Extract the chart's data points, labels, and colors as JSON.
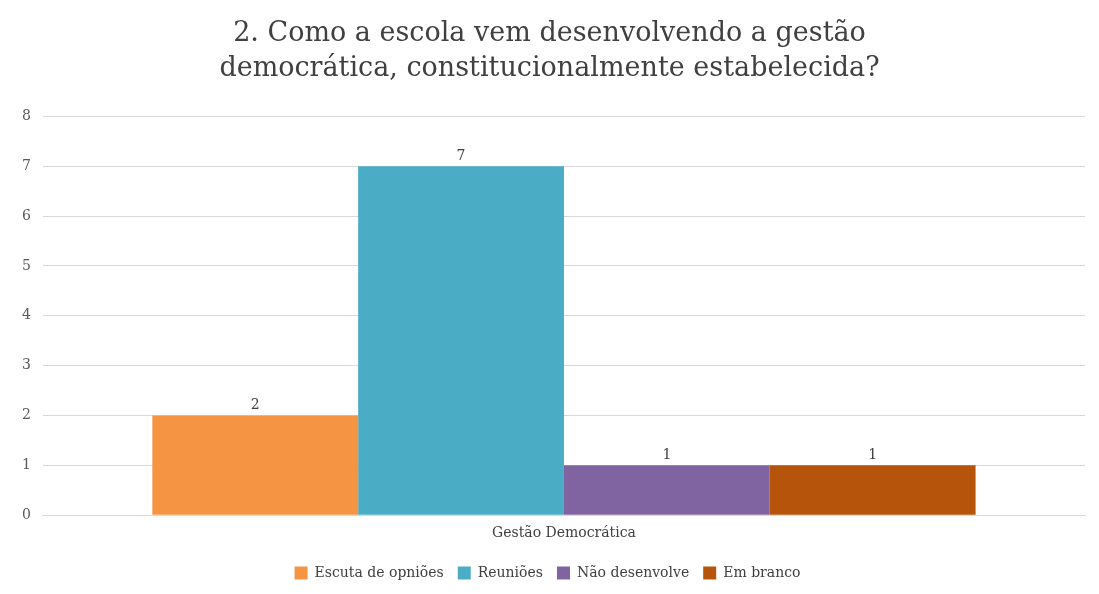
{
  "chart_data": {
    "type": "bar",
    "title": "2. Como a escola vem desenvolvendo a gestão democrática, constitucionalmente estabelecida?",
    "categories": [
      "Gestão Democrática"
    ],
    "series": [
      {
        "name": "Escuta de opniões",
        "color": "#f59443",
        "values": [
          2
        ]
      },
      {
        "name": "Reuniões",
        "color": "#4bacc6",
        "values": [
          7
        ]
      },
      {
        "name": "Não desenvolve",
        "color": "#8064a2",
        "values": [
          1
        ]
      },
      {
        "name": "Em branco",
        "color": "#b5540a",
        "values": [
          1
        ]
      }
    ],
    "ylim": [
      0,
      8
    ],
    "yticks": [
      0,
      1,
      2,
      3,
      4,
      5,
      6,
      7,
      8
    ],
    "grid": "y",
    "legend": "bottom",
    "data_labels": true
  }
}
